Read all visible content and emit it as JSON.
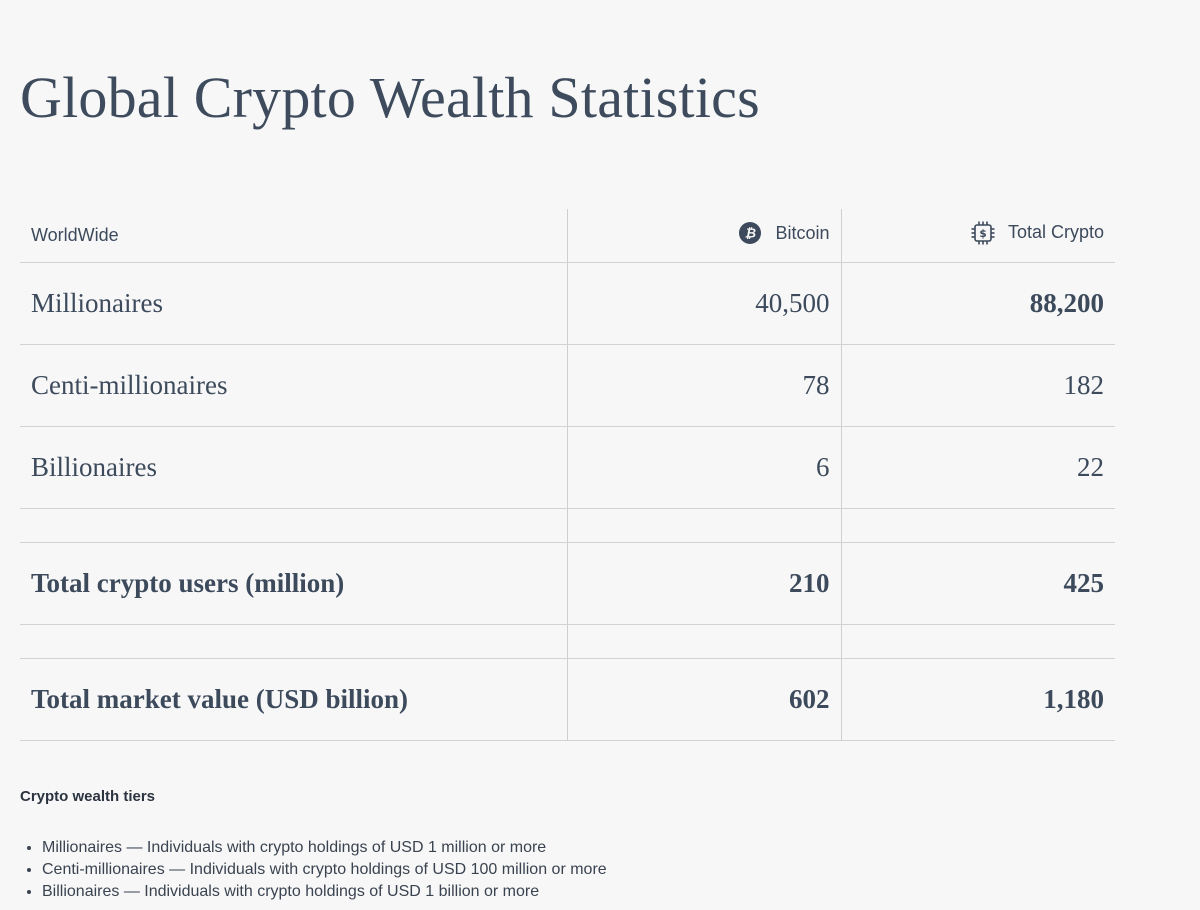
{
  "title": "Global Crypto Wealth Statistics",
  "table": {
    "header": {
      "label": "WorldWide",
      "col1": "Bitcoin",
      "col2": "Total Crypto",
      "col1_icon": "bitcoin-icon",
      "col2_icon": "crypto-chip-icon"
    },
    "rows": [
      {
        "label": "Millionaires",
        "col1": "40,500",
        "col2": "88,200"
      },
      {
        "label": "Centi-millionaires",
        "col1": "78",
        "col2": "182"
      },
      {
        "label": "Billionaires",
        "col1": "6",
        "col2": "22"
      }
    ],
    "totals": [
      {
        "label": "Total crypto users (million)",
        "col1": "210",
        "col2": "425"
      },
      {
        "label": "Total market value (USD billion)",
        "col1": "602",
        "col2": "1,180"
      }
    ]
  },
  "notes": {
    "title": "Crypto wealth tiers",
    "items": [
      "Millionaires — Individuals with crypto holdings of USD 1 million or more",
      "Centi-millionaires — Individuals with crypto holdings of USD 100 million or more",
      "Billionaires — Individuals with crypto holdings of USD 1 billion or more"
    ]
  },
  "colors": {
    "background": "#f7f7f7",
    "text": "#3c4a5c",
    "border": "#d2d2d2"
  }
}
